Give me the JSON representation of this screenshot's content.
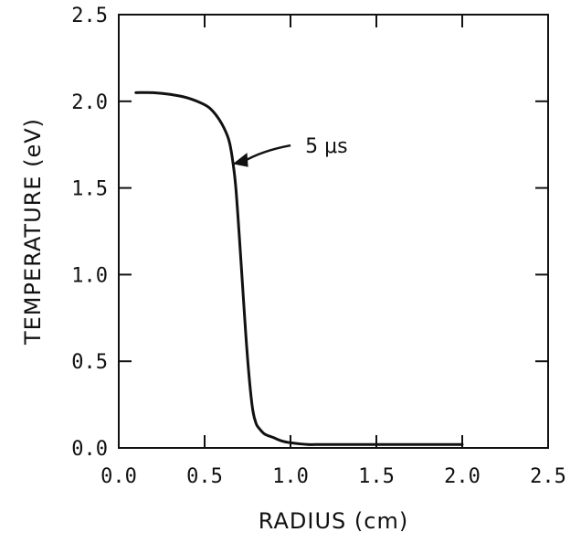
{
  "chart_data": {
    "type": "line",
    "title": "",
    "xlabel": "RADIUS (cm)",
    "ylabel": "TEMPERATURE (eV)",
    "xlim": [
      0.0,
      2.5
    ],
    "ylim": [
      0.0,
      2.5
    ],
    "xticks": [
      "0.0",
      "0.5",
      "1.0",
      "1.5",
      "2.0",
      "2.5"
    ],
    "yticks": [
      "0.0",
      "0.5",
      "1.0",
      "1.5",
      "2.0",
      "2.5"
    ],
    "grid": false,
    "annotation": "5 μs",
    "series": [
      {
        "name": "5 μs",
        "x": [
          0.1,
          0.2,
          0.3,
          0.4,
          0.5,
          0.55,
          0.6,
          0.64,
          0.66,
          0.68,
          0.7,
          0.72,
          0.74,
          0.76,
          0.78,
          0.8,
          0.82,
          0.85,
          0.9,
          0.95,
          1.0,
          1.1,
          1.2,
          1.5,
          2.0
        ],
        "y": [
          2.05,
          2.05,
          2.04,
          2.02,
          1.98,
          1.94,
          1.87,
          1.78,
          1.68,
          1.52,
          1.25,
          0.95,
          0.65,
          0.4,
          0.22,
          0.14,
          0.11,
          0.08,
          0.06,
          0.04,
          0.03,
          0.02,
          0.02,
          0.02,
          0.02
        ]
      }
    ],
    "annotation_point": [
      0.66,
      1.64
    ]
  }
}
